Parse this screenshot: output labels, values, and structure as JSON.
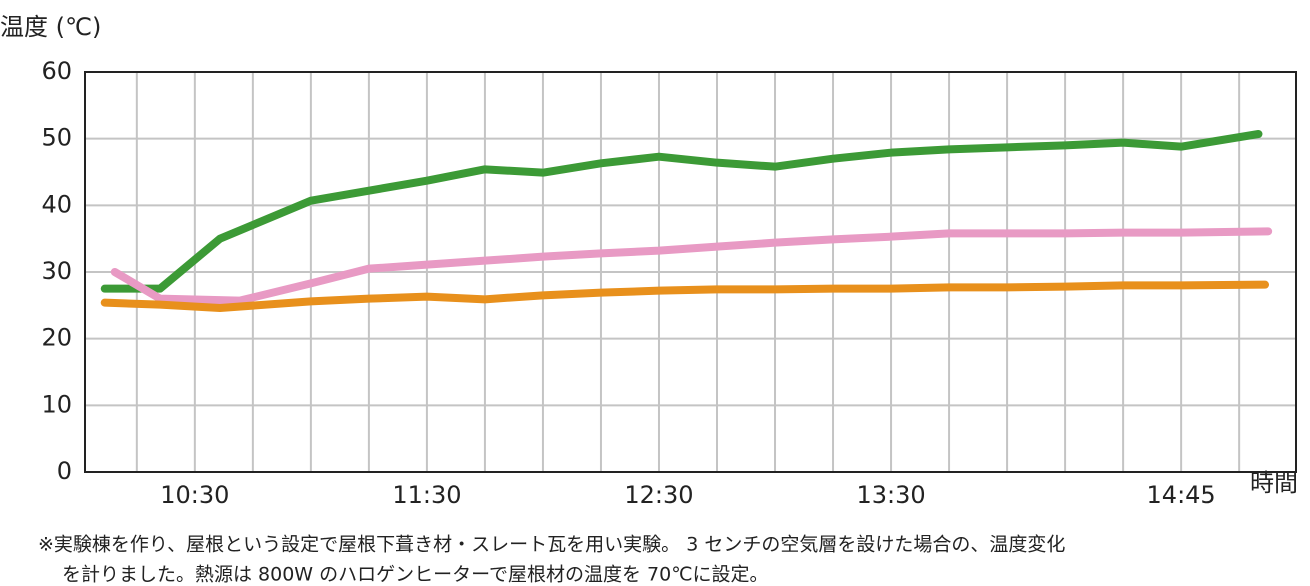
{
  "chart_data": {
    "type": "line",
    "y_label": "温度 (℃)",
    "x_label": "時間",
    "notes": [
      "※実験棟を作り、屋根という設定で屋根下葺き材・スレート瓦を用い実験。 3 センチの空気層を設けた場合の、温度変化",
      "を計りました。熱源は 800W のハロゲンヒーターで屋根材の温度を 70℃に設定。"
    ],
    "xlim": [
      601.6,
      914.7
    ],
    "ylim": [
      0,
      60
    ],
    "xticks": [
      {
        "value": 630,
        "label": "10:30"
      },
      {
        "value": 690,
        "label": "11:30"
      },
      {
        "value": 750,
        "label": "12:30"
      },
      {
        "value": 810,
        "label": "13:30"
      },
      {
        "value": 885,
        "label": "14:45"
      }
    ],
    "xgrid": [
      615,
      630,
      645,
      660,
      675,
      690,
      705,
      720,
      735,
      750,
      765,
      780,
      795,
      810,
      825,
      840,
      855,
      870,
      885,
      900
    ],
    "yticks": [
      0,
      10,
      20,
      30,
      40,
      50,
      60
    ],
    "grid": true,
    "series": [
      {
        "color": "#3c9a36",
        "x": [
          606.7,
          621,
          636.5,
          660,
          675,
          690,
          705,
          720,
          735,
          750,
          765,
          780,
          795,
          810,
          825,
          840,
          855,
          870,
          885,
          905
        ],
        "values": [
          27.5,
          27.5,
          35.0,
          40.7,
          42.2,
          43.7,
          45.4,
          44.9,
          46.3,
          47.3,
          46.4,
          45.8,
          47.0,
          47.9,
          48.4,
          48.7,
          49.0,
          49.4,
          48.8,
          50.7
        ]
      },
      {
        "color": "#e89ac4",
        "x": [
          609.3,
          621,
          641.6,
          660,
          675,
          690,
          705,
          720,
          735,
          750,
          765,
          780,
          795,
          810,
          825,
          840,
          855,
          870,
          885,
          907.5
        ],
        "values": [
          30.0,
          26.0,
          25.7,
          28.3,
          30.5,
          31.1,
          31.7,
          32.3,
          32.8,
          33.2,
          33.8,
          34.4,
          34.9,
          35.3,
          35.8,
          35.8,
          35.8,
          35.9,
          35.9,
          36.1
        ]
      },
      {
        "color": "#e8901c",
        "x": [
          606.7,
          621,
          636.5,
          660,
          675,
          690,
          705,
          720,
          735,
          750,
          765,
          780,
          795,
          810,
          825,
          840,
          855,
          870,
          885,
          906.7
        ],
        "values": [
          25.4,
          25.1,
          24.6,
          25.6,
          26.0,
          26.3,
          25.9,
          26.5,
          26.9,
          27.2,
          27.4,
          27.4,
          27.5,
          27.5,
          27.7,
          27.7,
          27.8,
          28.0,
          28.0,
          28.1
        ]
      }
    ]
  }
}
